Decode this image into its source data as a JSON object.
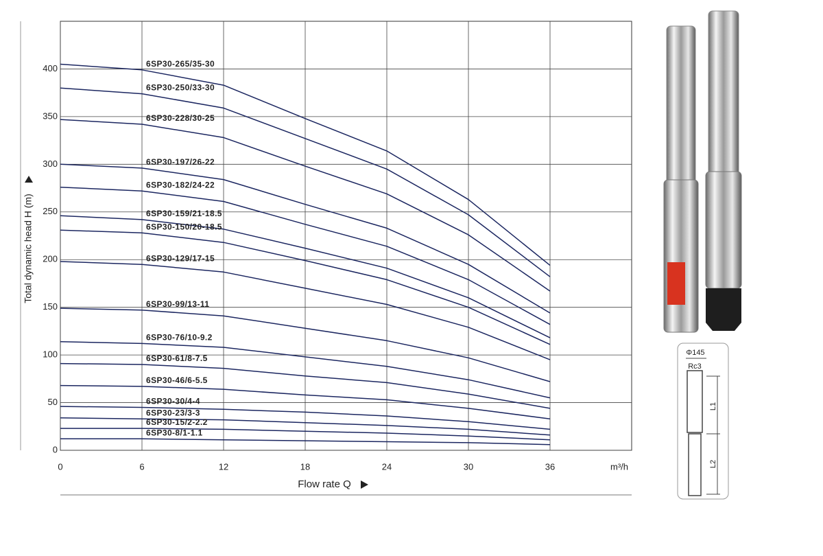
{
  "chart_data": {
    "type": "line",
    "x_label": "Flow rate Q",
    "y_label": "Total dynamic head H (m)",
    "x_unit": "m³/h",
    "x": [
      0,
      6,
      12,
      18,
      24,
      30,
      36
    ],
    "xlim": [
      0,
      42
    ],
    "xticks": [
      0,
      6,
      12,
      18,
      24,
      30,
      36
    ],
    "ylim": [
      0,
      450
    ],
    "yticks": [
      0,
      50,
      100,
      150,
      200,
      250,
      300,
      350,
      400
    ],
    "grid": true,
    "series": [
      {
        "name": "6SP30-265/35-30",
        "color": "#1b2660",
        "values": [
          405,
          399,
          383,
          348,
          314,
          263,
          194
        ]
      },
      {
        "name": "6SP30-250/33-30",
        "color": "#1b2660",
        "values": [
          380,
          374,
          359,
          327,
          295,
          247,
          182
        ]
      },
      {
        "name": "6SP30-228/30-25",
        "color": "#1b2660",
        "values": [
          347,
          342,
          328,
          298,
          269,
          226,
          167
        ]
      },
      {
        "name": "6SP30-197/26-22",
        "color": "#1b2660",
        "values": [
          300,
          296,
          284,
          258,
          233,
          195,
          144
        ]
      },
      {
        "name": "6SP30-182/24-22",
        "color": "#1b2660",
        "values": [
          276,
          272,
          261,
          237,
          214,
          179,
          132
        ]
      },
      {
        "name": "6SP30-159/21-18.5",
        "color": "#1b2660",
        "values": [
          246,
          242,
          232,
          212,
          191,
          160,
          118
        ]
      },
      {
        "name": "6SP30-150/20-18.5",
        "color": "#1b2660",
        "values": [
          231,
          228,
          218,
          199,
          179,
          150,
          111
        ]
      },
      {
        "name": "6SP30-129/17-15",
        "color": "#1b2660",
        "values": [
          198,
          195,
          187,
          170,
          153,
          129,
          95
        ]
      },
      {
        "name": "6SP30-99/13-11",
        "color": "#1b2660",
        "values": [
          149,
          147,
          141,
          128,
          115,
          97,
          72
        ]
      },
      {
        "name": "6SP30-76/10-9.2",
        "color": "#1b2660",
        "values": [
          114,
          112,
          108,
          98,
          88,
          74,
          55
        ]
      },
      {
        "name": "6SP30-61/8-7.5",
        "color": "#1b2660",
        "values": [
          91,
          90,
          86,
          78,
          71,
          59,
          44
        ]
      },
      {
        "name": "6SP30-46/6-5.5",
        "color": "#1b2660",
        "values": [
          68,
          67,
          64,
          58,
          53,
          44,
          33
        ]
      },
      {
        "name": "6SP30-30/4-4",
        "color": "#1b2660",
        "values": [
          46,
          45,
          43,
          40,
          36,
          30,
          22
        ]
      },
      {
        "name": "6SP30-23/3-3",
        "color": "#1b2660",
        "values": [
          34,
          33,
          32,
          29,
          26,
          22,
          16
        ]
      },
      {
        "name": "6SP30-15/2-2.2",
        "color": "#1b2660",
        "values": [
          23,
          23,
          22,
          20,
          18,
          15,
          11
        ]
      },
      {
        "name": "6SP30-8/1-1.1",
        "color": "#1b2660",
        "values": [
          12,
          12,
          11,
          10,
          9,
          8,
          6
        ]
      }
    ]
  },
  "drawing": {
    "diameter": "Φ145",
    "thread": "Rc3",
    "l1": "L1",
    "l2": "L2"
  }
}
